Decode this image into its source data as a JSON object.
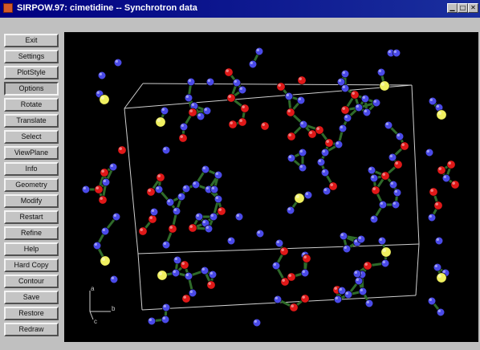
{
  "window": {
    "title": "SIRPOW.97: cimetidine -- Synchrotron data",
    "buttons": [
      "minimize-button",
      "maximize-button",
      "close-button"
    ]
  },
  "sidebar": {
    "items": [
      {
        "label": "Exit",
        "pressed": false
      },
      {
        "label": "Settings",
        "pressed": false
      },
      {
        "label": "PlotStyle",
        "pressed": false
      },
      {
        "label": "Options",
        "pressed": true
      },
      {
        "label": "Rotate",
        "pressed": false
      },
      {
        "label": "Translate",
        "pressed": false
      },
      {
        "label": "Select",
        "pressed": false
      },
      {
        "label": "ViewPlane",
        "pressed": false
      },
      {
        "label": "Info",
        "pressed": false
      },
      {
        "label": "Geometry",
        "pressed": false
      },
      {
        "label": "Modify",
        "pressed": false
      },
      {
        "label": "Restart",
        "pressed": false
      },
      {
        "label": "Refine",
        "pressed": false
      },
      {
        "label": "Help",
        "pressed": false
      },
      {
        "label": "Hard Copy",
        "pressed": false
      },
      {
        "label": "Contour",
        "pressed": false
      },
      {
        "label": "Save",
        "pressed": false
      },
      {
        "label": "Restore",
        "pressed": false
      },
      {
        "label": "Redraw",
        "pressed": false
      }
    ]
  },
  "viewport": {
    "background": "#000000",
    "axis_labels": [
      "a",
      "b",
      "c"
    ],
    "colors": {
      "carbon": "#4a4ae8",
      "oxygen": "#e01818",
      "sulfur": "#f0f060",
      "bond": "#2f6b2a",
      "cell": "#cfcfcf"
    }
  }
}
